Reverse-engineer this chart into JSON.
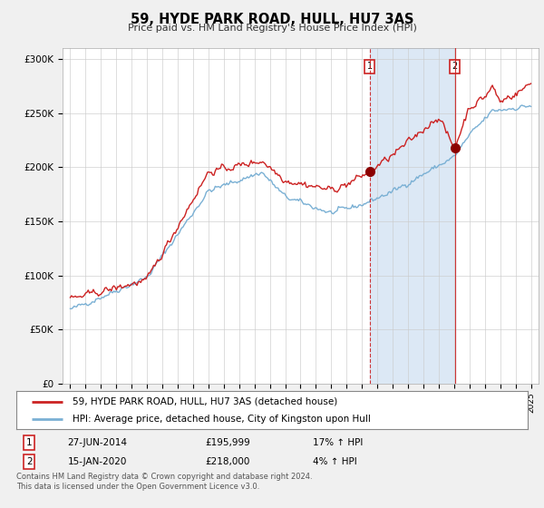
{
  "title": "59, HYDE PARK ROAD, HULL, HU7 3AS",
  "subtitle": "Price paid vs. HM Land Registry's House Price Index (HPI)",
  "footer": "Contains HM Land Registry data © Crown copyright and database right 2024.\nThis data is licensed under the Open Government Licence v3.0.",
  "legend_line1": "59, HYDE PARK ROAD, HULL, HU7 3AS (detached house)",
  "legend_line2": "HPI: Average price, detached house, City of Kingston upon Hull",
  "sale1_label": "1",
  "sale1_date": "27-JUN-2014",
  "sale1_price": "£195,999",
  "sale1_hpi": "17% ↑ HPI",
  "sale2_label": "2",
  "sale2_date": "15-JAN-2020",
  "sale2_price": "£218,000",
  "sale2_hpi": "4% ↑ HPI",
  "sale1_x": 2014.49,
  "sale1_y": 195999,
  "sale2_x": 2020.04,
  "sale2_y": 218000,
  "hpi_color": "#7ab0d4",
  "price_color": "#cc2222",
  "shade_color": "#dce8f5",
  "ylim": [
    0,
    310000
  ],
  "xlim_start": 1994.5,
  "xlim_end": 2025.5,
  "background_color": "#f0f0f0",
  "plot_bg_color": "#ffffff",
  "grid_color": "#cccccc",
  "title_fontsize": 11,
  "subtitle_fontsize": 8.5
}
